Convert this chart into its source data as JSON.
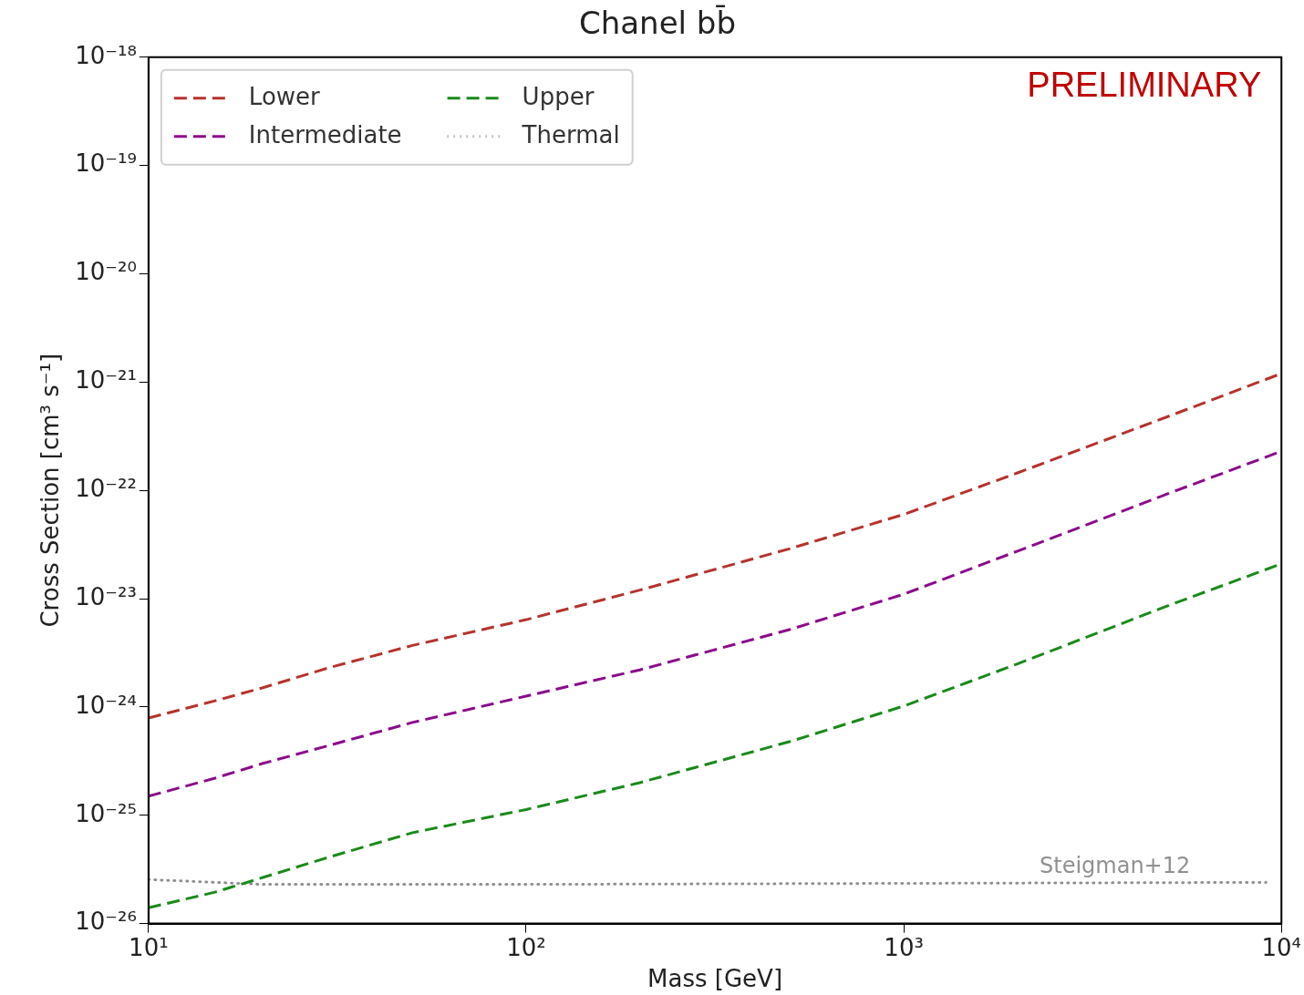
{
  "chart_data": {
    "type": "line",
    "title": "Chanel bb̄",
    "xlabel": "Mass [GeV]",
    "ylabel": "Cross Section [cm³ s⁻¹]",
    "log": "xy",
    "xlim": [
      10,
      10000
    ],
    "ylim": [
      1e-26,
      1e-18
    ],
    "xticks": [
      {
        "value": 10,
        "label": "10¹"
      },
      {
        "value": 100,
        "label": "10²"
      },
      {
        "value": 1000,
        "label": "10³"
      },
      {
        "value": 10000,
        "label": "10⁴"
      }
    ],
    "yticks": [
      {
        "value": 1e-26,
        "label": "10⁻²⁶"
      },
      {
        "value": 1e-25,
        "label": "10⁻²⁵"
      },
      {
        "value": 1e-24,
        "label": "10⁻²⁴"
      },
      {
        "value": 1e-23,
        "label": "10⁻²³"
      },
      {
        "value": 1e-22,
        "label": "10⁻²²"
      },
      {
        "value": 1e-21,
        "label": "10⁻²¹"
      },
      {
        "value": 1e-20,
        "label": "10⁻²⁰"
      },
      {
        "value": 1e-19,
        "label": "10⁻¹⁹"
      },
      {
        "value": 1e-18,
        "label": "10⁻¹⁸"
      }
    ],
    "x": [
      10,
      15,
      20,
      30,
      50,
      100,
      200,
      500,
      1000,
      2000,
      5000,
      10000
    ],
    "series": [
      {
        "name": "Lower",
        "color": "#b5332e",
        "line_style": "dashed",
        "values": [
          7.9e-25,
          1.14e-24,
          1.5e-24,
          2.3e-24,
          3.7e-24,
          6.4e-24,
          1.2e-23,
          2.9e-23,
          6e-23,
          1.45e-22,
          4.8e-22,
          1.2e-21
        ]
      },
      {
        "name": "Intermediate",
        "color": "#8b0a8b",
        "line_style": "dashed",
        "values": [
          1.5e-25,
          2.2e-25,
          3e-25,
          4.4e-25,
          7.2e-25,
          1.26e-24,
          2.2e-24,
          5.2e-24,
          1.1e-23,
          2.75e-23,
          9.3e-23,
          2.3e-22
        ]
      },
      {
        "name": "Upper",
        "color": "#1a8a1a",
        "line_style": "dashed",
        "values": [
          1.4e-26,
          1.95e-26,
          2.65e-26,
          4.1e-26,
          6.9e-26,
          1.13e-25,
          2e-25,
          4.8e-25,
          1.02e-24,
          2.5e-24,
          8.6e-24,
          2.1e-23
        ]
      },
      {
        "name": "Thermal",
        "color": "#909090",
        "line_style": "dotted",
        "x": [
          10,
          20,
          100,
          1000,
          9100
        ],
        "values": [
          2.55e-26,
          2.3e-26,
          2.3e-26,
          2.35e-26,
          2.4e-26
        ]
      }
    ],
    "annotations": [
      "Steigman+12",
      "PRELIMINARY"
    ],
    "legend": "top left",
    "marker": "none",
    "grid": false
  }
}
